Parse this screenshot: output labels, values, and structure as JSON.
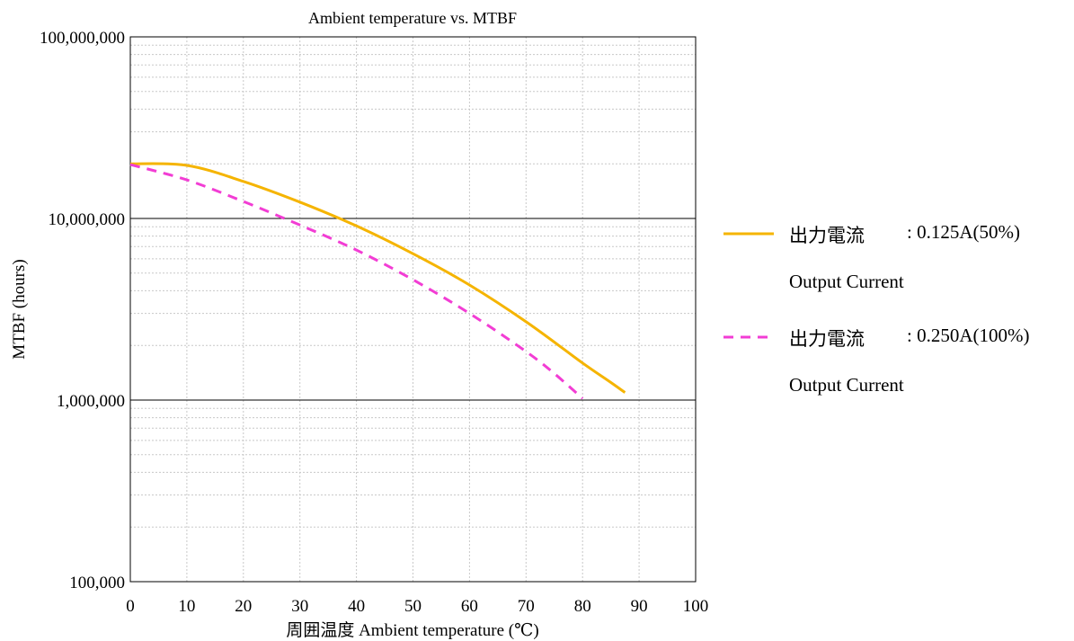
{
  "chart_data": {
    "type": "line",
    "title": "Ambient temperature vs. MTBF",
    "xlabel": "周囲温度 Ambient temperature (℃)",
    "ylabel": "MTBF (hours)",
    "x_scale": "linear",
    "y_scale": "log",
    "xlim": [
      0,
      100
    ],
    "ylim": [
      100000,
      100000000
    ],
    "x_ticks": [
      0,
      10,
      20,
      30,
      40,
      50,
      60,
      70,
      80,
      90,
      100
    ],
    "x_tick_labels": [
      "0",
      "10",
      "20",
      "30",
      "40",
      "50",
      "60",
      "70",
      "80",
      "90",
      "100"
    ],
    "y_ticks": [
      100000,
      1000000,
      10000000,
      100000000
    ],
    "y_tick_labels": [
      "100,000",
      "1,000,000",
      "10,000,000",
      "100,000,000"
    ],
    "grid": true,
    "legend_position": "right",
    "series": [
      {
        "name": "出力電流",
        "label_value": ": 0.125A(50%)",
        "label_sub": "Output Current",
        "color": "#F5B400",
        "style": "solid",
        "x": [
          0,
          10,
          20,
          30,
          40,
          50,
          60,
          70,
          80,
          85,
          87.5
        ],
        "y": [
          20000000,
          19600000,
          16000000,
          12300000,
          9100000,
          6400000,
          4300000,
          2700000,
          1600000,
          1250000,
          1100000
        ]
      },
      {
        "name": "出力電流",
        "label_value": ": 0.250A(100%)",
        "label_sub": "Output Current",
        "color": "#F23DD4",
        "style": "dashed",
        "x": [
          0,
          10,
          20,
          30,
          40,
          50,
          60,
          70,
          75,
          80
        ],
        "y": [
          19800000,
          16300000,
          12400000,
          9200000,
          6700000,
          4600000,
          3000000,
          1850000,
          1400000,
          1020000
        ]
      }
    ]
  }
}
